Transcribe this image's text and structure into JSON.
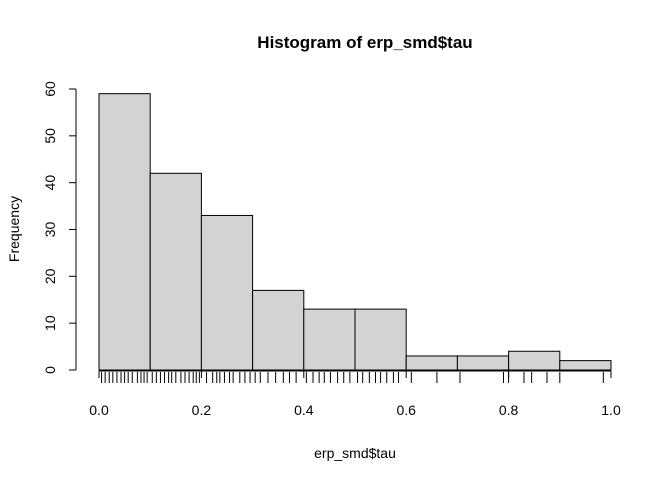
{
  "chart_data": {
    "type": "bar",
    "subtype": "histogram",
    "title": "Histogram of erp_smd$tau",
    "xlabel": "erp_smd$tau",
    "ylabel": "Frequency",
    "bin_edges": [
      0.0,
      0.1,
      0.2,
      0.3,
      0.4,
      0.5,
      0.6,
      0.7,
      0.8,
      0.9,
      1.0
    ],
    "values": [
      59,
      42,
      33,
      17,
      13,
      13,
      3,
      3,
      4,
      2
    ],
    "xlim": [
      0.0,
      1.0
    ],
    "ylim": [
      0,
      60
    ],
    "x_ticks": [
      "0.0",
      "0.2",
      "0.4",
      "0.6",
      "0.8",
      "1.0"
    ],
    "y_ticks": [
      "0",
      "10",
      "20",
      "30",
      "40",
      "50",
      "60"
    ],
    "grid": false,
    "legend": "none",
    "rug": [
      0.005,
      0.012,
      0.02,
      0.027,
      0.035,
      0.043,
      0.05,
      0.057,
      0.065,
      0.075,
      0.082,
      0.088,
      0.094,
      0.104,
      0.112,
      0.12,
      0.128,
      0.136,
      0.142,
      0.15,
      0.16,
      0.168,
      0.176,
      0.184,
      0.19,
      0.196,
      0.21,
      0.222,
      0.23,
      0.236,
      0.245,
      0.255,
      0.262,
      0.275,
      0.285,
      0.295,
      0.305,
      0.315,
      0.33,
      0.345,
      0.36,
      0.372,
      0.385,
      0.405,
      0.418,
      0.43,
      0.44,
      0.452,
      0.466,
      0.478,
      0.49,
      0.505,
      0.515,
      0.528,
      0.54,
      0.55,
      0.562,
      0.575,
      0.585,
      0.61,
      0.66,
      0.705,
      0.79,
      0.8,
      0.83,
      0.845,
      0.875,
      0.9,
      0.985
    ],
    "colors": {
      "bar_fill": "#d3d3d3",
      "bar_stroke": "#000000",
      "background": "#ffffff"
    }
  }
}
